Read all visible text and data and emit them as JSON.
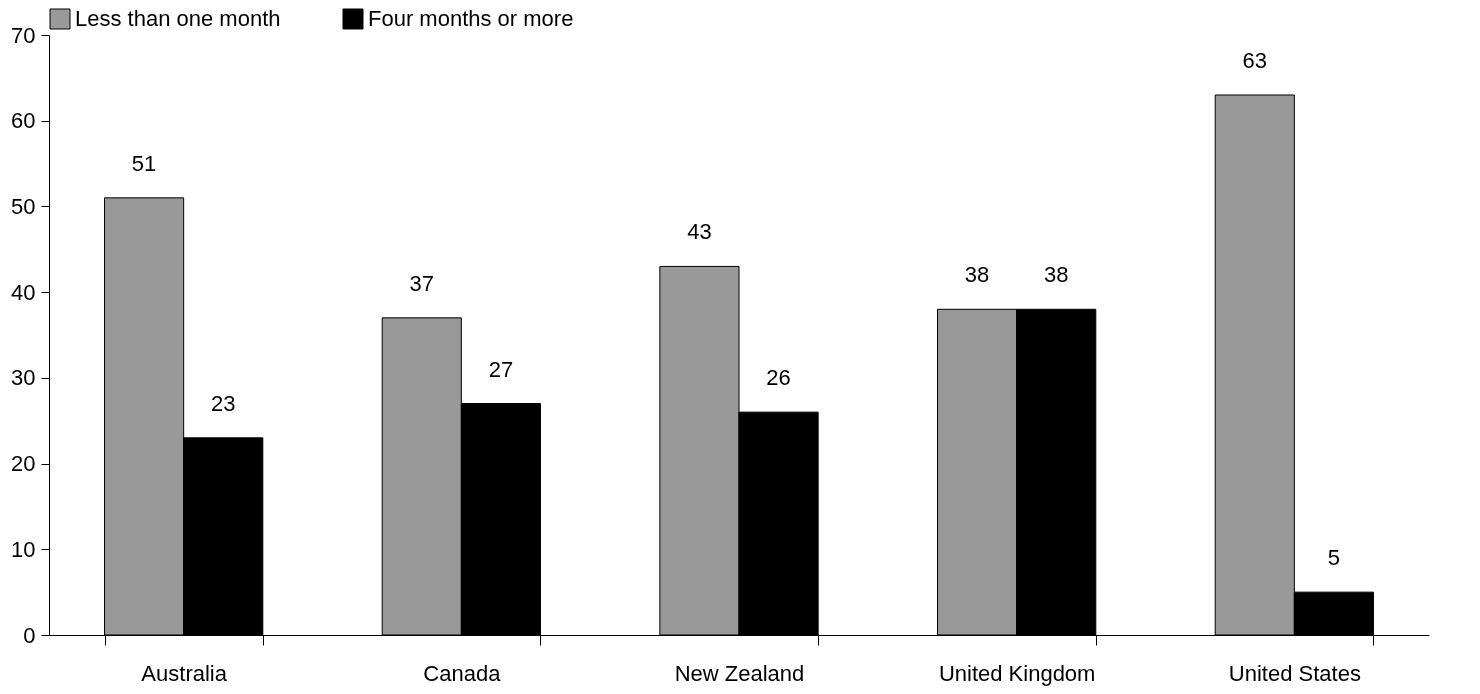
{
  "chart_data": {
    "type": "bar",
    "categories": [
      "Australia",
      "Canada",
      "New Zealand",
      "United Kingdom",
      "United States"
    ],
    "series": [
      {
        "name": "Less than one month",
        "color": "#999999",
        "values": [
          51,
          37,
          43,
          38,
          63
        ]
      },
      {
        "name": "Four months or more",
        "color": "#000000",
        "values": [
          23,
          27,
          26,
          38,
          5
        ]
      }
    ],
    "ylim": [
      0,
      70
    ],
    "yticks": [
      0,
      10,
      20,
      30,
      40,
      50,
      60,
      70
    ],
    "grid": false,
    "legend": "top",
    "data_labels": true
  }
}
